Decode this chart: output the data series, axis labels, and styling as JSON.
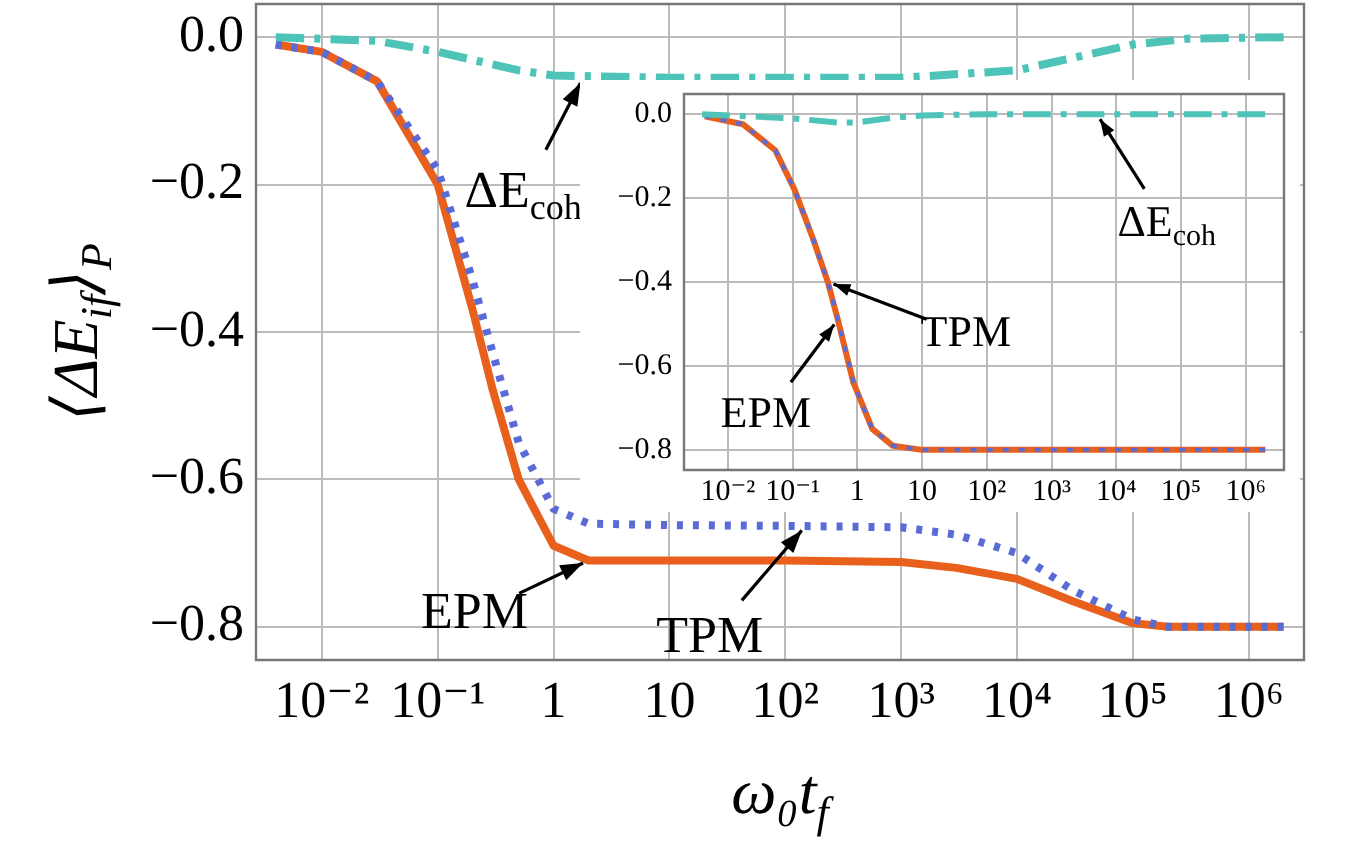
{
  "chart_data": [
    {
      "type": "line",
      "log": "x",
      "xlabel": "ω₀t$_{f}$",
      "ylabel": "⟨ΔE$_{if}$⟩$_{P}$",
      "xlim": [
        0.0027,
        3000000
      ],
      "ylim": [
        -0.845,
        0.045
      ],
      "xticks": [
        {
          "value": 0.01,
          "label": "10⁻²"
        },
        {
          "value": 0.1,
          "label": "10⁻¹"
        },
        {
          "value": 1,
          "label": "1"
        },
        {
          "value": 10,
          "label": "10"
        },
        {
          "value": 100,
          "label": "10²"
        },
        {
          "value": 1000,
          "label": "10³"
        },
        {
          "value": 10000,
          "label": "10⁴"
        },
        {
          "value": 100000,
          "label": "10⁵"
        },
        {
          "value": 1000000,
          "label": "10⁶"
        }
      ],
      "yticks": [
        {
          "value": 0,
          "label": "0.0"
        },
        {
          "value": -0.2,
          "label": "−0.2"
        },
        {
          "value": -0.4,
          "label": "−0.4"
        },
        {
          "value": -0.6,
          "label": "−0.6"
        },
        {
          "value": -0.8,
          "label": "−0.8"
        }
      ],
      "grid": true,
      "legend": false,
      "marker": "none",
      "series": [
        {
          "color": "#e8601c",
          "line_style": "solid",
          "x": [
            0.004,
            0.01,
            0.03,
            0.1,
            0.2,
            0.3,
            0.5,
            1,
            2,
            10,
            100,
            1000,
            3000,
            10000,
            30000,
            100000,
            200000,
            2000000
          ],
          "values": [
            -0.01,
            -0.02,
            -0.06,
            -0.2,
            -0.37,
            -0.48,
            -0.6,
            -0.69,
            -0.71,
            -0.71,
            -0.71,
            -0.712,
            -0.72,
            -0.735,
            -0.765,
            -0.795,
            -0.8,
            -0.8
          ]
        },
        {
          "color": "#5b6bd6",
          "line_style": "dotted",
          "x": [
            0.004,
            0.01,
            0.03,
            0.1,
            0.2,
            0.3,
            0.5,
            1,
            2,
            10,
            100,
            1000,
            3000,
            10000,
            30000,
            100000,
            200000,
            2000000
          ],
          "values": [
            -0.01,
            -0.02,
            -0.06,
            -0.18,
            -0.33,
            -0.43,
            -0.55,
            -0.64,
            -0.66,
            -0.662,
            -0.663,
            -0.665,
            -0.675,
            -0.7,
            -0.75,
            -0.79,
            -0.8,
            -0.8
          ]
        },
        {
          "color": "#4ec4b8",
          "line_style": "dashdot",
          "x": [
            0.004,
            0.03,
            0.1,
            0.5,
            1,
            10,
            1000,
            10000,
            100000,
            300000,
            2000000
          ],
          "values": [
            0,
            -0.005,
            -0.02,
            -0.045,
            -0.052,
            -0.055,
            -0.055,
            -0.045,
            -0.01,
            -0.002,
            0
          ]
        }
      ],
      "annotations": [
        {
          "text": "ΔE$_{coh}$",
          "x": 1.8,
          "y": -0.055
        },
        {
          "text": "EPM",
          "x": 2,
          "y": -0.71
        },
        {
          "text": "TPM",
          "x": 150,
          "y": -0.663
        }
      ]
    },
    {
      "type": "line",
      "log": "x",
      "xlim": [
        0.0021,
        3900000
      ],
      "ylim": [
        -0.848,
        0.048
      ],
      "xticks": [
        {
          "value": 0.01,
          "label": "10⁻²"
        },
        {
          "value": 0.1,
          "label": "10⁻¹"
        },
        {
          "value": 1,
          "label": "1"
        },
        {
          "value": 10,
          "label": "10"
        },
        {
          "value": 100,
          "label": "10²"
        },
        {
          "value": 1000,
          "label": "10³"
        },
        {
          "value": 10000,
          "label": "10⁴"
        },
        {
          "value": 100000,
          "label": "10⁵"
        },
        {
          "value": 1000000,
          "label": "10⁶"
        }
      ],
      "yticks": [
        {
          "value": 0,
          "label": "0.0"
        },
        {
          "value": -0.2,
          "label": "−0.2"
        },
        {
          "value": -0.4,
          "label": "−0.4"
        },
        {
          "value": -0.6,
          "label": "−0.6"
        },
        {
          "value": -0.8,
          "label": "−0.8"
        }
      ],
      "grid": true,
      "legend": false,
      "marker": "none",
      "series": [
        {
          "color": "#e8601c",
          "line_style": "solid",
          "x": [
            0.0044,
            0.017,
            0.054,
            0.107,
            0.21,
            0.35,
            0.5,
            0.87,
            1.7,
            3.5,
            10,
            2000000
          ],
          "values": [
            -0.005,
            -0.024,
            -0.086,
            -0.18,
            -0.3,
            -0.4,
            -0.49,
            -0.64,
            -0.75,
            -0.79,
            -0.8,
            -0.8
          ]
        },
        {
          "color": "#5b6bd6",
          "line_style": "dotted",
          "x": [
            0.0044,
            0.017,
            0.054,
            0.107,
            0.21,
            0.35,
            0.5,
            0.87,
            1.7,
            3.5,
            10,
            2000000
          ],
          "values": [
            -0.005,
            -0.024,
            -0.086,
            -0.18,
            -0.3,
            -0.4,
            -0.49,
            -0.64,
            -0.75,
            -0.79,
            -0.8,
            -0.8
          ]
        },
        {
          "color": "#4ec4b8",
          "line_style": "dashdot",
          "x": [
            0.004,
            0.1,
            0.5,
            1,
            3,
            10,
            100,
            2000000
          ],
          "values": [
            0,
            -0.01,
            -0.02,
            -0.02,
            -0.01,
            -0.003,
            0,
            0
          ]
        }
      ],
      "annotations": [
        {
          "text": "TPM",
          "x": 0.35,
          "y": -0.4
        },
        {
          "text": "EPM",
          "x": 0.5,
          "y": -0.49
        },
        {
          "text": "ΔE$_{coh}$",
          "x": 5000,
          "y": 0
        }
      ]
    }
  ]
}
